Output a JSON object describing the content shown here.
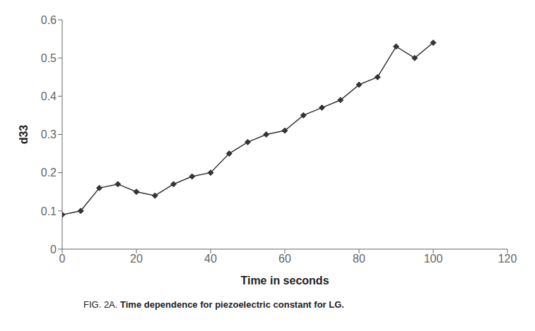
{
  "chart_data": {
    "type": "line",
    "xlabel": "Time in seconds",
    "ylabel": "d33",
    "annotations": [
      "FIG. 2A.",
      "Time dependence for piezoelectric constant for LG."
    ],
    "x": [
      0,
      5,
      10,
      15,
      20,
      25,
      30,
      35,
      40,
      45,
      50,
      55,
      60,
      65,
      70,
      75,
      80,
      85,
      90,
      95,
      100
    ],
    "values": [
      0.09,
      0.1,
      0.16,
      0.17,
      0.15,
      0.14,
      0.17,
      0.19,
      0.2,
      0.25,
      0.28,
      0.3,
      0.31,
      0.35,
      0.37,
      0.39,
      0.43,
      0.45,
      0.53,
      0.5,
      0.54
    ],
    "xlim": [
      0,
      120
    ],
    "ylim": [
      0,
      0.6
    ],
    "xticks": [
      0,
      20,
      40,
      60,
      80,
      100,
      120
    ],
    "yticks": [
      0,
      0.1,
      0.2,
      0.3,
      0.4,
      0.5,
      0.6
    ],
    "color": "#333333",
    "marker": "diamond",
    "grid": false
  }
}
